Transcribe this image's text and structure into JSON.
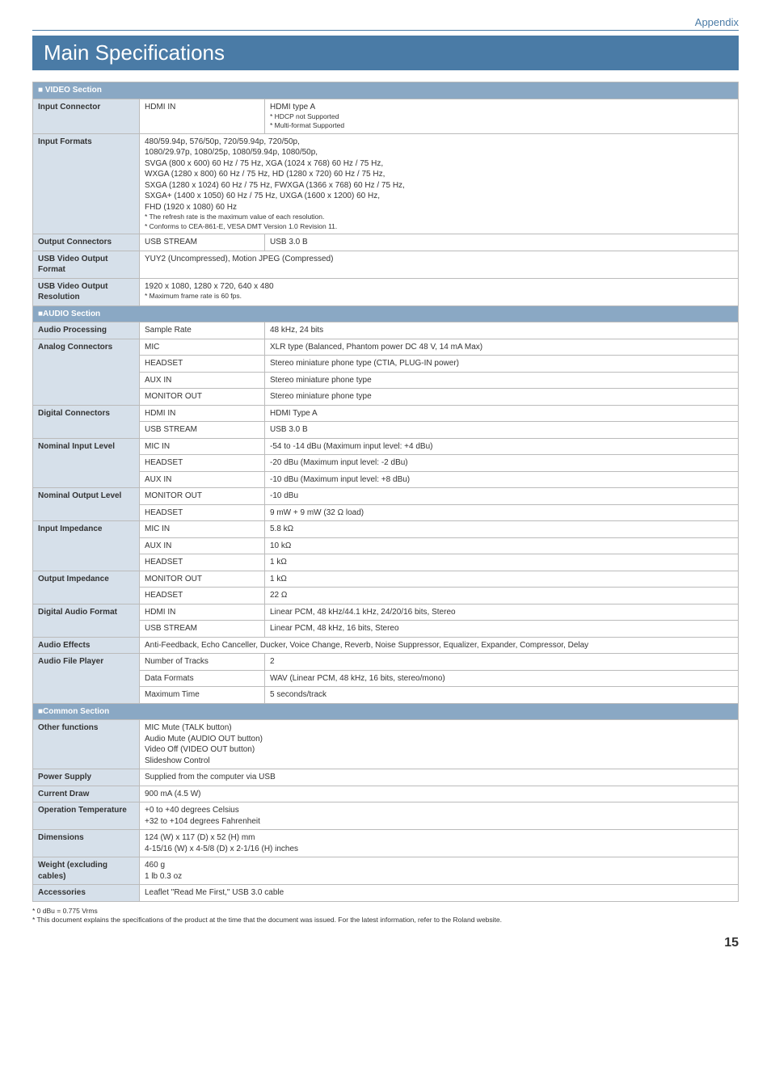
{
  "appendix_label": "Appendix",
  "page_title": "Main Specifications",
  "page_number": "15",
  "footnote1": "* 0 dBu = 0.775 Vrms",
  "footnote2": "* This document explains the specifications of the product at the time that the document was issued. For the latest information, refer to the Roland website.",
  "video": {
    "section_label": "■ VIDEO Section",
    "input_connector_label": "Input Connector",
    "input_connector_sub": "HDMI IN",
    "input_connector_line1": "HDMI type A",
    "input_connector_line2": "* HDCP not Supported",
    "input_connector_line3": "* Multi-format Supported",
    "input_formats_label": "Input Formats",
    "input_formats_l1": "480/59.94p, 576/50p, 720/59.94p, 720/50p,",
    "input_formats_l2": "1080/29.97p, 1080/25p, 1080/59.94p, 1080/50p,",
    "input_formats_l3": "SVGA (800 x 600) 60 Hz / 75 Hz, XGA (1024 x 768) 60 Hz / 75 Hz,",
    "input_formats_l4": "WXGA (1280 x 800) 60 Hz / 75 Hz, HD (1280 x 720) 60 Hz / 75 Hz,",
    "input_formats_l5": "SXGA (1280 x 1024) 60 Hz / 75 Hz, FWXGA (1366 x 768) 60 Hz / 75 Hz,",
    "input_formats_l6": "SXGA+ (1400 x 1050) 60 Hz / 75 Hz, UXGA (1600 x 1200) 60 Hz,",
    "input_formats_l7": "FHD (1920 x 1080) 60 Hz",
    "input_formats_n1": "* The refresh rate is the maximum value of each resolution.",
    "input_formats_n2": "* Conforms to CEA-861-E, VESA DMT Version 1.0 Revision 11.",
    "output_conn_label": "Output Connectors",
    "output_conn_sub": "USB STREAM",
    "output_conn_val": "USB 3.0 B",
    "usb_vid_fmt_label": "USB Video Output Format",
    "usb_vid_fmt_val": "YUY2 (Uncompressed), Motion JPEG (Compressed)",
    "usb_vid_res_label": "USB Video Output Resolution",
    "usb_vid_res_l1": "1920 x 1080, 1280 x 720, 640 x 480",
    "usb_vid_res_n1": "* Maximum frame rate is 60 fps."
  },
  "audio": {
    "section_label": "■AUDIO Section",
    "proc_label": "Audio Processing",
    "proc_sub": "Sample Rate",
    "proc_val": "48 kHz, 24 bits",
    "analog_label": "Analog Connectors",
    "analog_r1s": "MIC",
    "analog_r1v": "XLR type (Balanced, Phantom power DC 48 V, 14 mA Max)",
    "analog_r2s": "HEADSET",
    "analog_r2v": "Stereo miniature phone type (CTIA, PLUG-IN power)",
    "analog_r3s": "AUX IN",
    "analog_r3v": "Stereo miniature phone type",
    "analog_r4s": "MONITOR OUT",
    "analog_r4v": "Stereo miniature phone type",
    "digital_label": "Digital Connectors",
    "digital_r1s": "HDMI IN",
    "digital_r1v": "HDMI Type A",
    "digital_r2s": "USB STREAM",
    "digital_r2v": "USB 3.0 B",
    "nom_in_label": "Nominal Input Level",
    "nom_in_r1s": "MIC IN",
    "nom_in_r1v": "-54 to -14 dBu (Maximum input level: +4 dBu)",
    "nom_in_r2s": "HEADSET",
    "nom_in_r2v": "-20 dBu (Maximum input level: -2 dBu)",
    "nom_in_r3s": "AUX IN",
    "nom_in_r3v": "-10 dBu (Maximum input level: +8 dBu)",
    "nom_out_label": "Nominal Output Level",
    "nom_out_r1s": "MONITOR OUT",
    "nom_out_r1v": "-10 dBu",
    "nom_out_r2s": "HEADSET",
    "nom_out_r2v": "9 mW + 9 mW (32 Ω load)",
    "in_imp_label": "Input Impedance",
    "in_imp_r1s": "MIC IN",
    "in_imp_r1v": "5.8 kΩ",
    "in_imp_r2s": "AUX IN",
    "in_imp_r2v": "10 kΩ",
    "in_imp_r3s": "HEADSET",
    "in_imp_r3v": "1 kΩ",
    "out_imp_label": "Output Impedance",
    "out_imp_r1s": "MONITOR OUT",
    "out_imp_r1v": "1 kΩ",
    "out_imp_r2s": "HEADSET",
    "out_imp_r2v": "22 Ω",
    "dig_af_label": "Digital Audio Format",
    "dig_af_r1s": "HDMI IN",
    "dig_af_r1v": "Linear PCM, 48 kHz/44.1 kHz, 24/20/16 bits, Stereo",
    "dig_af_r2s": "USB STREAM",
    "dig_af_r2v": "Linear PCM, 48 kHz, 16 bits, Stereo",
    "fx_label": "Audio Effects",
    "fx_val": "Anti-Feedback, Echo Canceller, Ducker, Voice Change, Reverb, Noise Suppressor, Equalizer, Expander, Compressor, Delay",
    "afp_label": "Audio File Player",
    "afp_r1s": "Number of Tracks",
    "afp_r1v": "2",
    "afp_r2s": "Data Formats",
    "afp_r2v": "WAV (Linear PCM, 48 kHz, 16 bits, stereo/mono)",
    "afp_r3s": "Maximum Time",
    "afp_r3v": "5 seconds/track"
  },
  "common": {
    "section_label": "■Common Section",
    "other_label": "Other functions",
    "other_l1": "MIC Mute (TALK button)",
    "other_l2": "Audio Mute (AUDIO OUT button)",
    "other_l3": "Video Off (VIDEO OUT button)",
    "other_l4": "Slideshow Control",
    "power_label": "Power Supply",
    "power_val": "Supplied from the computer via USB",
    "current_label": "Current Draw",
    "current_val": "900 mA (4.5 W)",
    "optemp_label": "Operation Temperature",
    "optemp_l1": "+0 to +40 degrees Celsius",
    "optemp_l2": "+32 to +104 degrees Fahrenheit",
    "dim_label": "Dimensions",
    "dim_l1": "124 (W) x 117 (D) x 52 (H) mm",
    "dim_l2": "4-15/16 (W) x 4-5/8 (D) x 2-1/16 (H) inches",
    "weight_label": "Weight (excluding cables)",
    "weight_l1": "460 g",
    "weight_l2": "1 lb 0.3 oz",
    "acc_label": "Accessories",
    "acc_val": "Leaflet \"Read Me First,\" USB 3.0 cable"
  }
}
